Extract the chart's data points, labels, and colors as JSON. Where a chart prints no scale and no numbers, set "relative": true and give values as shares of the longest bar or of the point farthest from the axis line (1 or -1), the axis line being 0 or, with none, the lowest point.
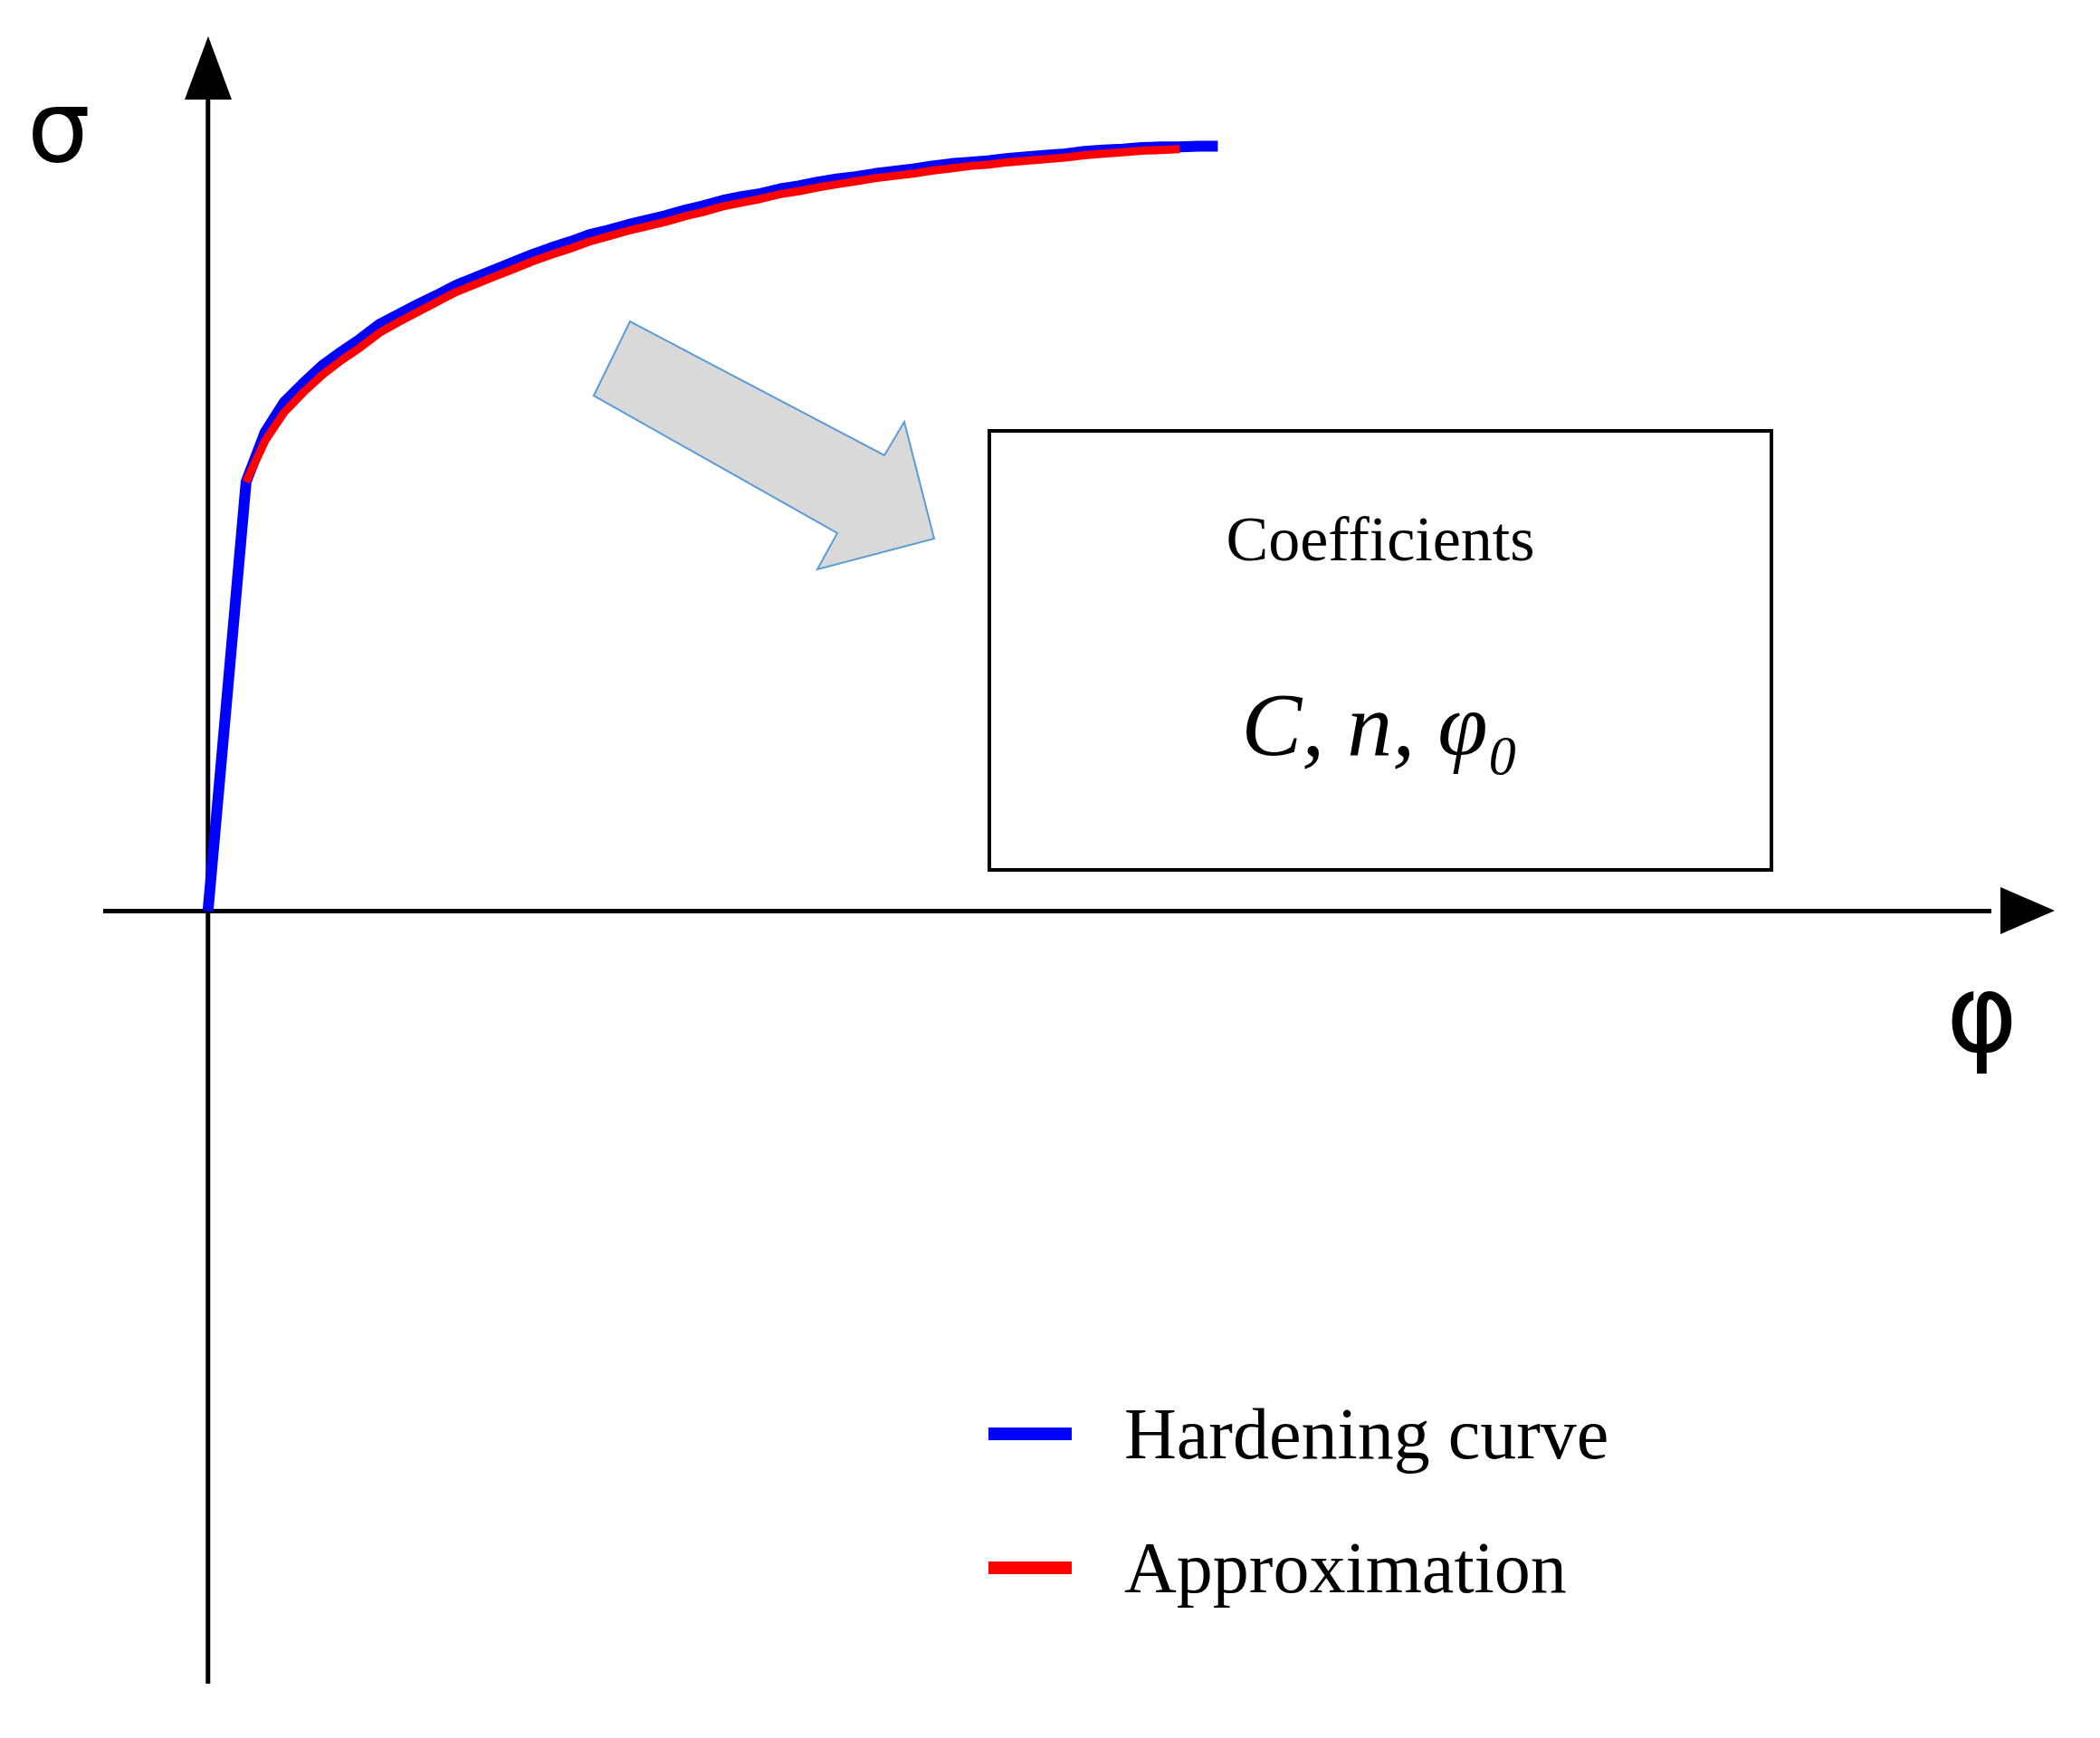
{
  "chart_data": {
    "type": "line",
    "relative": true,
    "xlabel": "φ",
    "ylabel": "σ",
    "annotations": [
      "Coefficients",
      "C,  n,  φ₀"
    ],
    "legend": "bottom right",
    "marker": "none",
    "line_style": "solid",
    "categories": [
      null,
      null,
      null,
      null,
      null,
      null,
      null,
      null,
      null,
      null,
      null,
      null,
      null,
      null,
      null,
      null,
      null,
      null,
      null,
      null,
      null,
      null,
      null,
      null,
      null,
      null,
      null,
      null,
      null,
      null,
      null,
      null,
      null,
      null,
      null,
      null,
      null,
      null,
      null,
      null,
      null,
      null,
      null,
      null,
      null,
      null,
      null,
      null,
      null,
      null,
      null,
      null,
      null,
      null,
      null,
      null,
      null,
      null,
      null,
      null,
      null,
      null,
      null,
      null,
      null,
      null,
      null,
      null,
      null,
      null,
      null,
      null,
      null,
      null,
      null,
      null,
      null,
      null,
      null,
      null,
      null,
      null,
      null,
      null,
      null,
      null,
      null,
      null,
      null,
      null,
      null,
      null,
      null,
      null,
      null,
      null
    ],
    "series": [
      {
        "name": "Hardening curve",
        "color": "#0000ff",
        "values": [
          0,
          0.28,
          0.561,
          0.626,
          0.665,
          0.69,
          0.713,
          0.731,
          0.748,
          0.767,
          0.78,
          0.793,
          0.805,
          0.818,
          0.828,
          0.838,
          0.848,
          0.858,
          0.867,
          0.875,
          0.884,
          0.89,
          0.897,
          0.903,
          0.909,
          0.916,
          0.922,
          0.929,
          0.934,
          0.938,
          0.944,
          0.948,
          0.953,
          0.957,
          0.96,
          0.964,
          0.967,
          0.97,
          0.974,
          0.977,
          0.979,
          0.981,
          0.984,
          0.986,
          0.988,
          0.99,
          0.993,
          0.995,
          0.996,
          0.998,
          0.999,
          0.999,
          1,
          1,
          null,
          null,
          null,
          null,
          null,
          null,
          null,
          null,
          null,
          null,
          null,
          null,
          null,
          null,
          null,
          null,
          null,
          null,
          null,
          null,
          null,
          null,
          null,
          null,
          null,
          null,
          null,
          null,
          null,
          null,
          null,
          null,
          null,
          null,
          null,
          null,
          null,
          null,
          null,
          null,
          null,
          null
        ]
      },
      {
        "name": "Approximation",
        "color": "#ff0000",
        "values": [
          null,
          null,
          0.561,
          0.615,
          0.652,
          0.678,
          0.701,
          0.72,
          0.737,
          0.756,
          0.77,
          0.783,
          0.796,
          0.809,
          0.819,
          0.829,
          0.839,
          0.849,
          0.858,
          0.866,
          0.875,
          0.882,
          0.889,
          0.895,
          0.901,
          0.908,
          0.914,
          0.921,
          0.926,
          0.931,
          0.937,
          0.941,
          0.946,
          0.95,
          0.954,
          0.958,
          0.961,
          0.964,
          0.968,
          0.971,
          0.974,
          0.976,
          0.979,
          0.981,
          0.983,
          0.985,
          0.988,
          0.99,
          0.992,
          0.994,
          0.995,
          0.996,
          null,
          null,
          null,
          null,
          null,
          null,
          null,
          null,
          null,
          null,
          null,
          null,
          null,
          null,
          null,
          null,
          null,
          null,
          null,
          null,
          null,
          null,
          null,
          null,
          null,
          null,
          null,
          null,
          null,
          null,
          null,
          null,
          null,
          null,
          null,
          null,
          null,
          null,
          null,
          null,
          null,
          null,
          null,
          null
        ]
      }
    ]
  }
}
